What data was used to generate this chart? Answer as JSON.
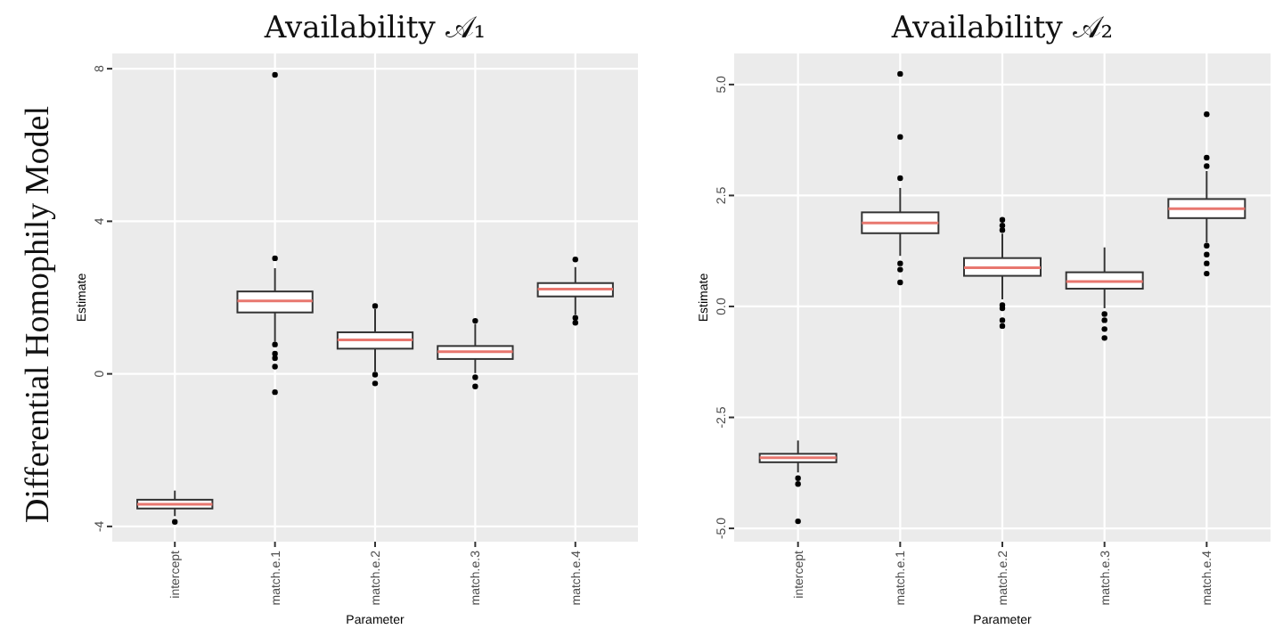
{
  "chart_data": [
    {
      "type": "box",
      "title": "Availability 𝒜₁",
      "xlabel": "Parameter",
      "ylabel": "Estimate",
      "annotations": [
        "Differential Homophily Model"
      ],
      "categories": [
        "intercept",
        "match.e.1",
        "match.e.2",
        "match.e.3",
        "match.e.4"
      ],
      "ylim": [
        -4.4,
        8.4
      ],
      "yticks": [
        -4,
        0,
        4,
        8
      ],
      "grid": true,
      "color": "#333333",
      "boxes": [
        {
          "low": -3.73,
          "q1": -3.53,
          "median": -3.42,
          "q3": -3.3,
          "high": -3.06,
          "outliers": [
            -3.88
          ]
        },
        {
          "low": 0.84,
          "q1": 1.61,
          "median": 1.91,
          "q3": 2.16,
          "high": 2.77,
          "outliers": [
            3.03,
            7.84,
            0.77,
            0.53,
            0.41,
            0.19,
            -0.48
          ]
        },
        {
          "low": 0.06,
          "q1": 0.66,
          "median": 0.89,
          "q3": 1.09,
          "high": 1.7,
          "outliers": [
            1.78,
            -0.02,
            -0.25
          ]
        },
        {
          "low": 0.02,
          "q1": 0.39,
          "median": 0.58,
          "q3": 0.73,
          "high": 1.31,
          "outliers": [
            1.39,
            -0.09,
            -0.33
          ]
        },
        {
          "low": 1.55,
          "q1": 2.03,
          "median": 2.22,
          "q3": 2.38,
          "high": 2.8,
          "outliers": [
            3.0,
            1.47,
            1.34
          ]
        }
      ]
    },
    {
      "type": "box",
      "title": "Availability 𝒜₂",
      "xlabel": "Parameter",
      "ylabel": "Estimate",
      "categories": [
        "intercept",
        "match.e.1",
        "match.e.2",
        "match.e.3",
        "match.e.4"
      ],
      "ylim": [
        -5.3,
        5.7
      ],
      "yticks": [
        {
          "value": -5,
          "label": "-5.0"
        },
        -2.5,
        {
          "value": 0,
          "label": "0.0"
        },
        2.5,
        {
          "value": 5,
          "label": "5.0"
        }
      ],
      "grid": true,
      "color": "#333333",
      "boxes": [
        {
          "low": -3.74,
          "q1": -3.51,
          "median": -3.41,
          "q3": -3.32,
          "high": -3.02,
          "outliers": [
            -3.87,
            -4.0,
            -4.84
          ]
        },
        {
          "low": 1.14,
          "q1": 1.65,
          "median": 1.88,
          "q3": 2.12,
          "high": 2.67,
          "outliers": [
            2.89,
            3.82,
            5.24,
            0.97,
            0.83,
            0.54
          ]
        },
        {
          "low": 0.16,
          "q1": 0.69,
          "median": 0.87,
          "q3": 1.09,
          "high": 1.64,
          "outliers": [
            1.72,
            1.82,
            1.95,
            0.03,
            -0.04,
            -0.31,
            -0.44
          ]
        },
        {
          "low": -0.04,
          "q1": 0.4,
          "median": 0.56,
          "q3": 0.77,
          "high": 1.33,
          "outliers": [
            -0.17,
            -0.31,
            -0.51,
            -0.71
          ]
        },
        {
          "low": 1.44,
          "q1": 1.99,
          "median": 2.2,
          "q3": 2.42,
          "high": 3.05,
          "outliers": [
            3.16,
            3.35,
            4.33,
            1.37,
            1.17,
            0.97,
            0.74
          ]
        }
      ]
    }
  ]
}
